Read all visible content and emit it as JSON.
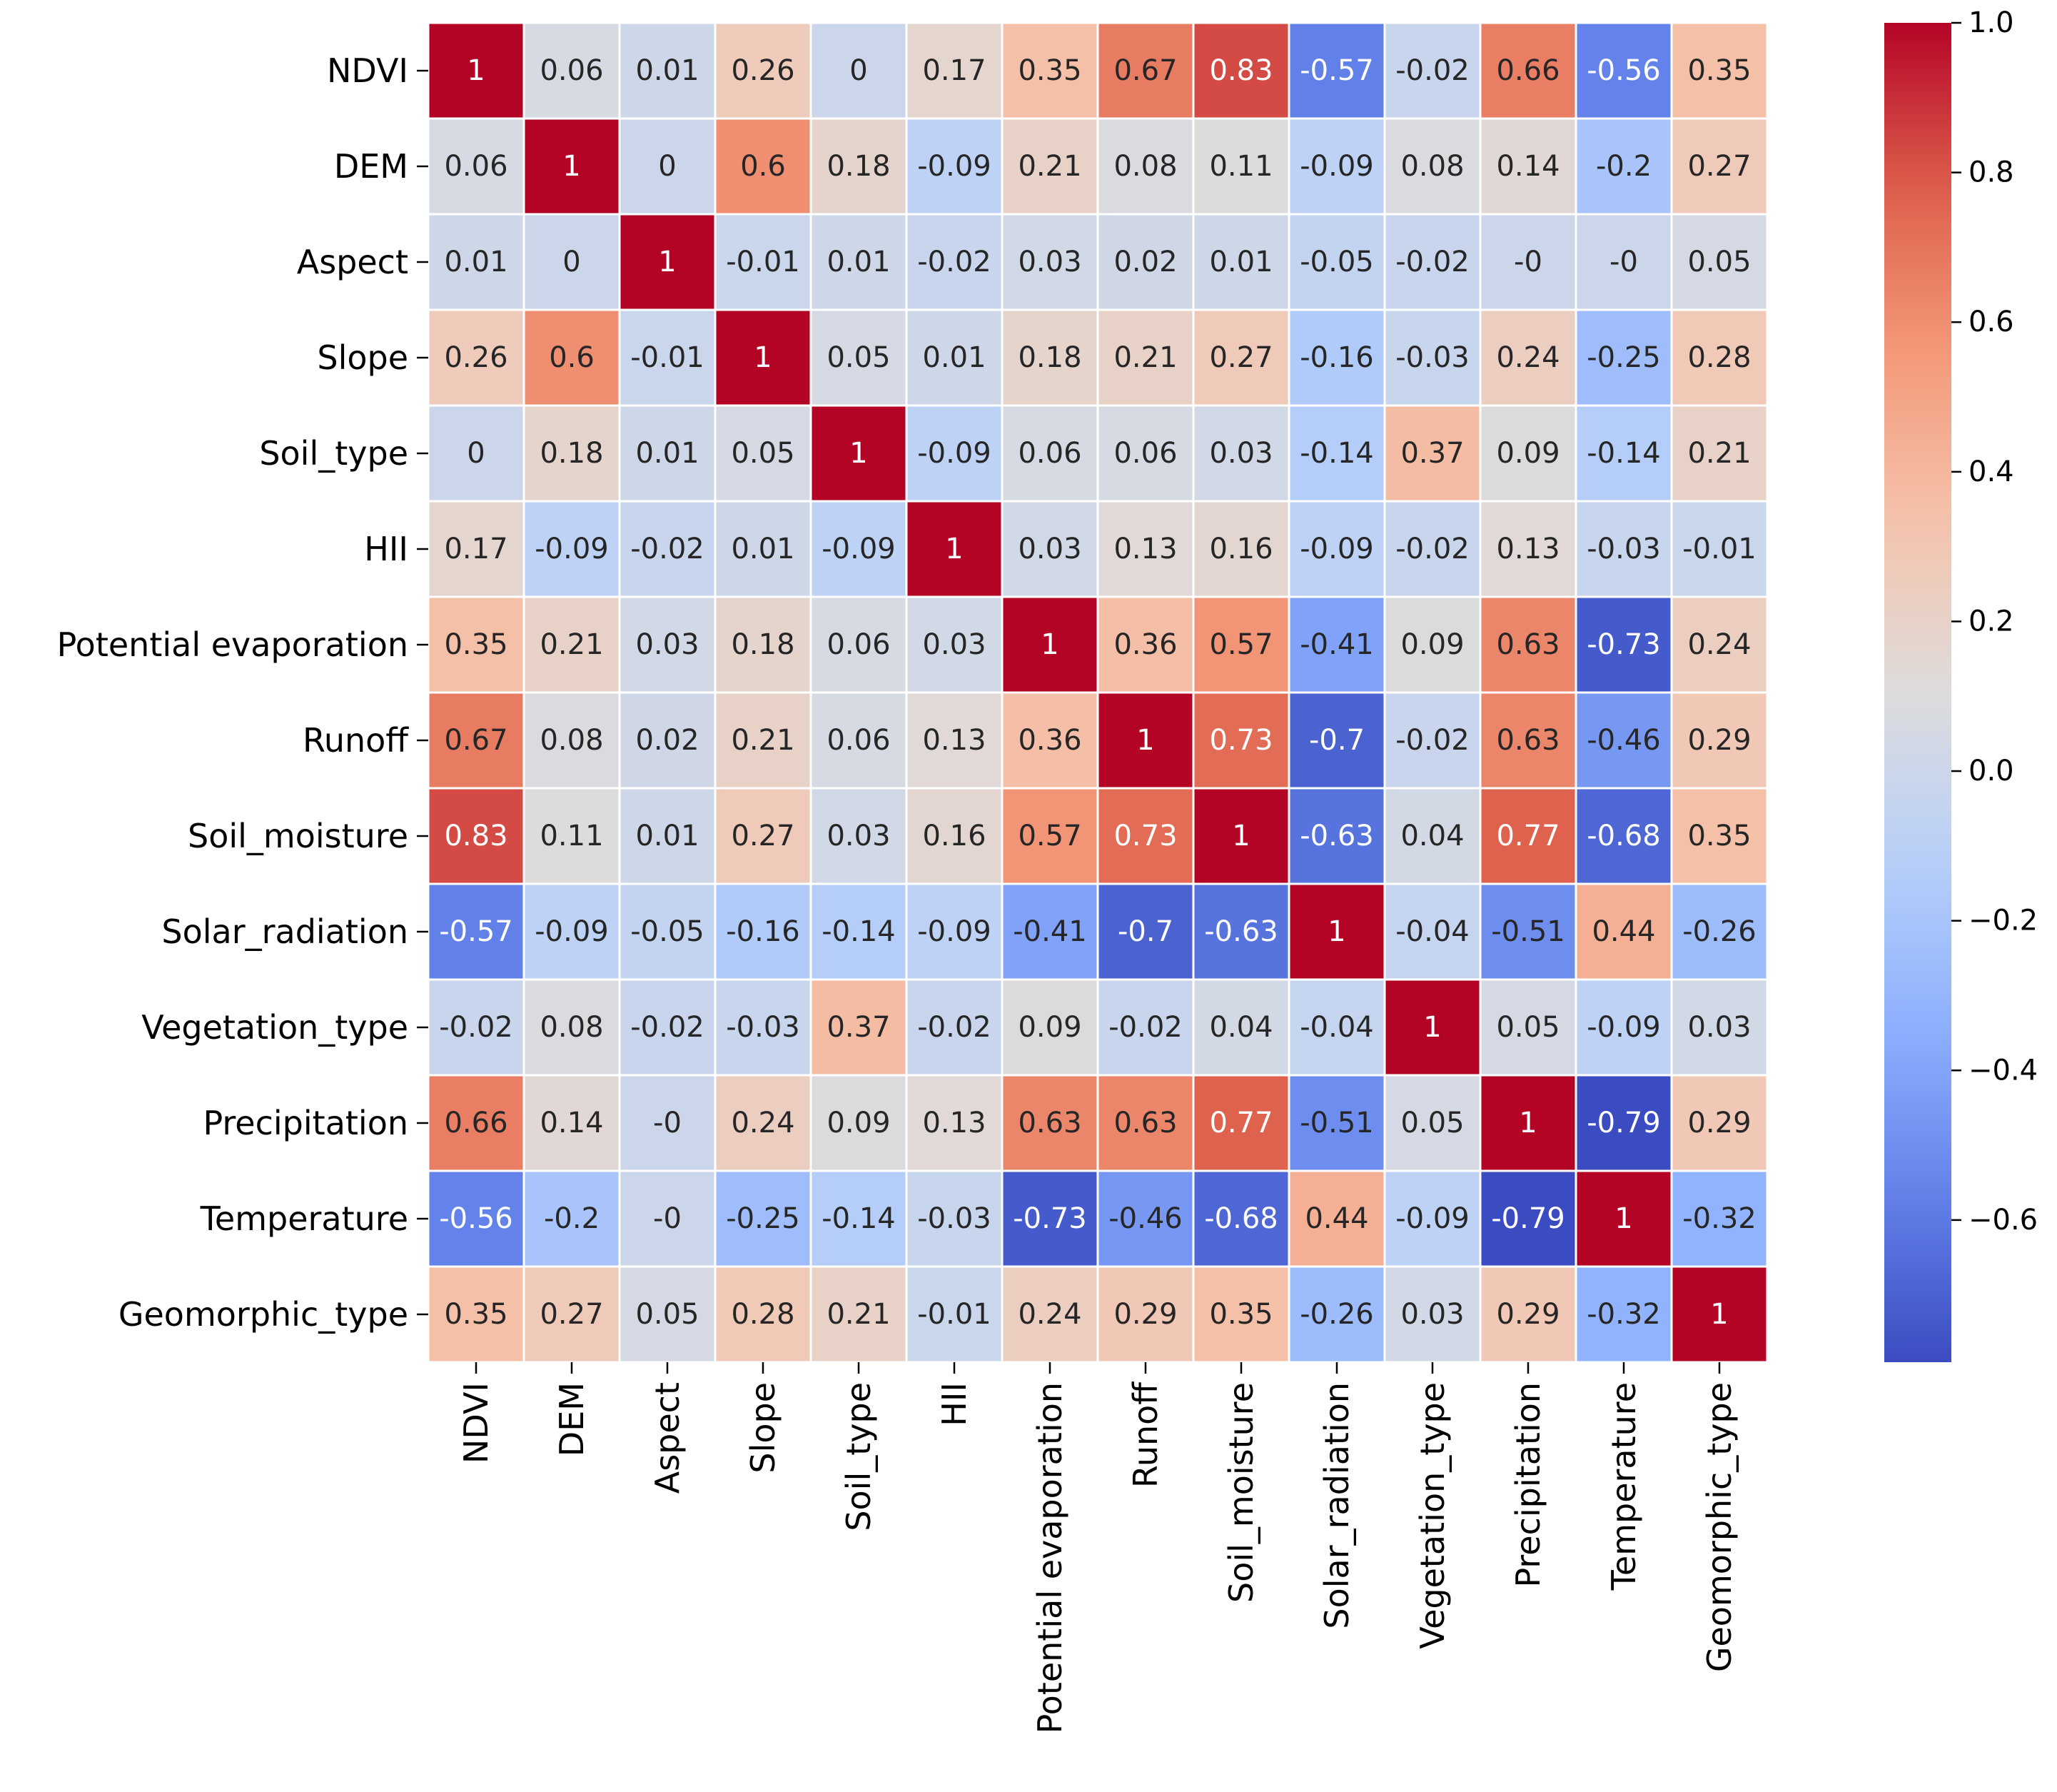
{
  "chart_data": {
    "type": "heatmap",
    "title": "",
    "xlabel": "",
    "ylabel": "",
    "labels": [
      "NDVI",
      "DEM",
      "Aspect",
      "Slope",
      "Soil_type",
      "HII",
      "Potential evaporation",
      "Runoff",
      "Soil_moisture",
      "Solar_radiation",
      "Vegetation_type",
      "Precipitation",
      "Temperature",
      "Geomorphic_type"
    ],
    "values": [
      [
        1,
        0.06,
        0.01,
        0.26,
        0,
        0.17,
        0.35,
        0.67,
        0.83,
        -0.57,
        -0.02,
        0.66,
        -0.56,
        0.35
      ],
      [
        0.06,
        1,
        0,
        0.6,
        0.18,
        -0.09,
        0.21,
        0.08,
        0.11,
        -0.09,
        0.08,
        0.14,
        -0.2,
        0.27
      ],
      [
        0.01,
        0,
        1,
        -0.01,
        0.01,
        -0.02,
        0.03,
        0.02,
        0.01,
        -0.05,
        -0.02,
        "-0",
        "-0",
        0.05
      ],
      [
        0.26,
        0.6,
        -0.01,
        1,
        0.05,
        0.01,
        0.18,
        0.21,
        0.27,
        -0.16,
        -0.03,
        0.24,
        -0.25,
        0.28
      ],
      [
        0,
        0.18,
        0.01,
        0.05,
        1,
        -0.09,
        0.06,
        0.06,
        0.03,
        -0.14,
        0.37,
        0.09,
        -0.14,
        0.21
      ],
      [
        0.17,
        -0.09,
        -0.02,
        0.01,
        -0.09,
        1,
        0.03,
        0.13,
        0.16,
        -0.09,
        -0.02,
        0.13,
        -0.03,
        -0.01
      ],
      [
        0.35,
        0.21,
        0.03,
        0.18,
        0.06,
        0.03,
        1,
        0.36,
        0.57,
        -0.41,
        0.09,
        0.63,
        -0.73,
        0.24
      ],
      [
        0.67,
        0.08,
        0.02,
        0.21,
        0.06,
        0.13,
        0.36,
        1,
        0.73,
        -0.7,
        -0.02,
        0.63,
        -0.46,
        0.29
      ],
      [
        0.83,
        0.11,
        0.01,
        0.27,
        0.03,
        0.16,
        0.57,
        0.73,
        1,
        -0.63,
        0.04,
        0.77,
        -0.68,
        0.35
      ],
      [
        -0.57,
        -0.09,
        -0.05,
        -0.16,
        -0.14,
        -0.09,
        -0.41,
        -0.7,
        -0.63,
        1,
        -0.04,
        -0.51,
        0.44,
        -0.26
      ],
      [
        -0.02,
        0.08,
        -0.02,
        -0.03,
        0.37,
        -0.02,
        0.09,
        -0.02,
        0.04,
        -0.04,
        1,
        0.05,
        -0.09,
        0.03
      ],
      [
        0.66,
        0.14,
        "-0",
        0.24,
        0.09,
        0.13,
        0.63,
        0.63,
        0.77,
        -0.51,
        0.05,
        1,
        -0.79,
        0.29
      ],
      [
        -0.56,
        -0.2,
        "-0",
        -0.25,
        -0.14,
        -0.03,
        -0.73,
        -0.46,
        -0.68,
        0.44,
        -0.09,
        -0.79,
        1,
        -0.32
      ],
      [
        0.35,
        0.27,
        0.05,
        0.28,
        0.21,
        -0.01,
        0.24,
        0.29,
        0.35,
        -0.26,
        0.03,
        0.29,
        -0.32,
        1
      ]
    ],
    "colormap": "coolwarm",
    "vmin": -0.79,
    "vmax": 1.0,
    "colorbar": {
      "ticks": [
        1.0,
        0.8,
        0.6,
        0.4,
        0.2,
        0.0,
        -0.2,
        -0.4,
        -0.6
      ],
      "tick_labels": [
        "1.0",
        "0.8",
        "0.6",
        "0.4",
        "0.2",
        "0.0",
        "−0.2",
        "−0.4",
        "−0.6"
      ],
      "placement": "right"
    },
    "grid": true,
    "cell_border_color": "#ffffff"
  }
}
